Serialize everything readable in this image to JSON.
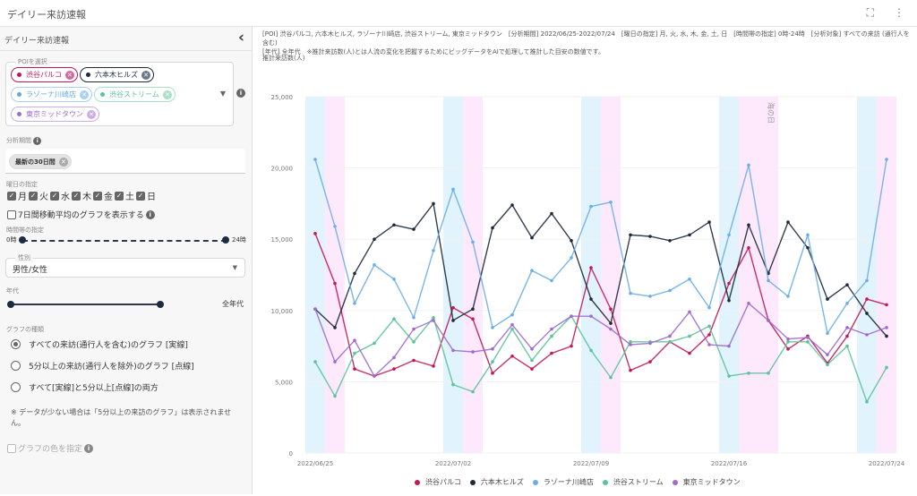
{
  "window": {
    "title": "デイリー来訪速報",
    "icons": [
      "fullscreen-icon",
      "more-vert-icon"
    ]
  },
  "sidebar": {
    "title": "デイリー来訪速報",
    "collapse_icon": "chevron-left-icon",
    "poi": {
      "label": "POIを選択",
      "chips": [
        {
          "label": "渋谷パルコ",
          "color": "#c2185b"
        },
        {
          "label": "六本木ヒルズ",
          "color": "#1c2a3a"
        },
        {
          "label": "ラゾーナ川崎店",
          "color": "#5fa8e8"
        },
        {
          "label": "渋谷ストリーム",
          "color": "#5cc29a"
        },
        {
          "label": "東京ミッドタウン",
          "color": "#a06ad0"
        }
      ]
    },
    "period": {
      "label": "分析期間",
      "chip": "最新の30日間"
    },
    "weekdays": {
      "label": "曜日の指定",
      "days": [
        "月",
        "火",
        "水",
        "木",
        "金",
        "土",
        "日"
      ]
    },
    "moving_average": {
      "label": "7日間移動平均のグラフを表示する",
      "checked": false
    },
    "time_range": {
      "label": "時間帯の指定",
      "min": "0時",
      "max": "24時"
    },
    "gender": {
      "label": "性別",
      "value": "男性/女性"
    },
    "age": {
      "label": "年代",
      "value": "全年代"
    },
    "graph_type": {
      "label": "グラフの種類",
      "options": [
        {
          "label": "すべての来訪(通行人を含む)のグラフ [実線]",
          "selected": true
        },
        {
          "label": "5分以上の来訪(通行人を除外)のグラフ [点線]",
          "selected": false
        },
        {
          "label": "すべて[実線]と5分以上[点線]の両方",
          "selected": false
        }
      ],
      "note": "※ データが少ない場合は「5分以上の来訪のグラフ」は表示されません。"
    },
    "color_spec": {
      "label": "グラフの色を指定",
      "checked": false,
      "disabled": true
    }
  },
  "main": {
    "description_line1": "[POI] 渋谷パルコ, 六本木ヒルズ, ラゾーナ川崎店, 渋谷ストリーム, 東京ミッドタウン　[分析期間] 2022/06/25-2022/07/24　[曜日の指定] 月, 火, 水, 木, 金, 土, 日　[時間帯の指定] 0時-24時　[分析対象] すべての来訪 (通行人を含む)",
    "description_line2": "[年代] 全年代　※推計来訪数(人)とは人流の変化を把握するためにビッグデータをAIで処理して推計した目安の数値です。"
  },
  "chart_data": {
    "type": "line",
    "title": "",
    "ylabel": "推計来訪数(人)",
    "xlabel": "",
    "ylim": [
      0,
      25000
    ],
    "yticks": [
      "0",
      "5,000",
      "10,000",
      "15,000",
      "20,000",
      "25,000"
    ],
    "xtick_labels": [
      "2022/06/25",
      "2022/07/02",
      "2022/07/09",
      "2022/07/16",
      "2022/07/24"
    ],
    "x": [
      "06/25",
      "06/26",
      "06/27",
      "06/28",
      "06/29",
      "06/30",
      "07/01",
      "07/02",
      "07/03",
      "07/04",
      "07/05",
      "07/06",
      "07/07",
      "07/08",
      "07/09",
      "07/10",
      "07/11",
      "07/12",
      "07/13",
      "07/14",
      "07/15",
      "07/16",
      "07/17",
      "07/18",
      "07/19",
      "07/20",
      "07/21",
      "07/22",
      "07/23",
      "07/24"
    ],
    "weekend_bands": [
      {
        "saturday": "06/25",
        "sunday": "06/26"
      },
      {
        "saturday": "07/02",
        "sunday": "07/03"
      },
      {
        "saturday": "07/09",
        "sunday": "07/10"
      },
      {
        "saturday": "07/16",
        "sunday": "07/17",
        "holiday": "07/18"
      },
      {
        "saturday": "07/23",
        "sunday": "07/24"
      }
    ],
    "annotations": [
      {
        "x": "07/18",
        "text": "海の日"
      }
    ],
    "grid": true,
    "legend_position": "bottom",
    "series": [
      {
        "name": "渋谷パルコ",
        "color": "#c2185b",
        "values": [
          15400,
          11900,
          5900,
          5400,
          5900,
          6500,
          6100,
          10200,
          9400,
          5600,
          6800,
          5900,
          7000,
          7500,
          13000,
          10100,
          5800,
          6400,
          7800,
          7000,
          8300,
          11900,
          14400,
          9300,
          7300,
          8200,
          6300,
          8200,
          10800,
          10400
        ]
      },
      {
        "name": "六本木ヒルズ",
        "color": "#1c2a3a",
        "values": [
          10100,
          8800,
          12600,
          15000,
          16000,
          15700,
          17500,
          9300,
          10100,
          15800,
          17400,
          15100,
          16800,
          14900,
          10800,
          9100,
          15300,
          15200,
          14900,
          15300,
          16200,
          10700,
          16000,
          12600,
          16200,
          14400,
          10800,
          11800,
          9800,
          8200
        ]
      },
      {
        "name": "ラゾーナ川崎店",
        "color": "#6aaee8",
        "values": [
          20600,
          15900,
          10500,
          13200,
          12200,
          9500,
          14200,
          18500,
          14800,
          8800,
          9700,
          12800,
          12100,
          13700,
          17300,
          17600,
          11200,
          11000,
          11400,
          12200,
          10200,
          15300,
          20200,
          12100,
          11000,
          15300,
          8400,
          10500,
          12100,
          20600
        ]
      },
      {
        "name": "渋谷ストリーム",
        "color": "#5cc29a",
        "values": [
          6400,
          4000,
          7000,
          7700,
          9400,
          7800,
          9500,
          4800,
          4300,
          6400,
          8700,
          6500,
          8200,
          9600,
          7200,
          5300,
          7800,
          7800,
          7800,
          8200,
          8900,
          5400,
          5600,
          5600,
          7800,
          7800,
          6200,
          7500,
          3600,
          6000
        ]
      },
      {
        "name": "東京ミッドタウン",
        "color": "#a06ad0",
        "values": [
          10100,
          6400,
          7900,
          5400,
          6700,
          8700,
          9300,
          7200,
          7100,
          7300,
          9000,
          7300,
          8700,
          9600,
          9600,
          8700,
          7600,
          7700,
          8200,
          9900,
          7600,
          7500,
          10500,
          9300,
          8000,
          8100,
          6900,
          8800,
          8300,
          8800
        ]
      }
    ]
  }
}
